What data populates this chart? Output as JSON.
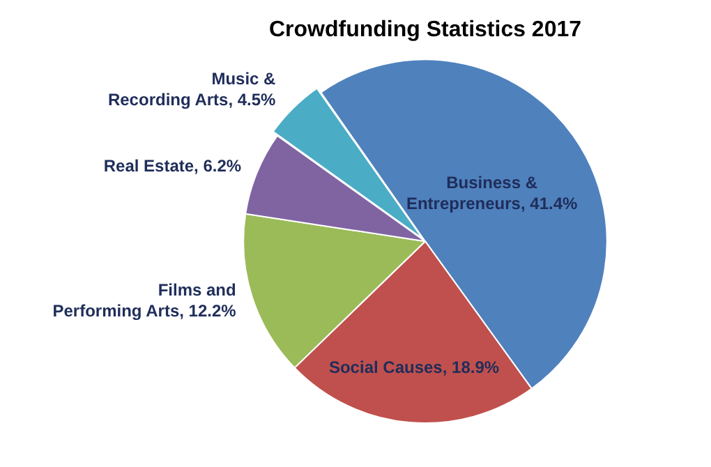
{
  "chart_data": {
    "type": "pie",
    "title": "Crowdfunding Statistics 2017",
    "categories": [
      "Business & Entrepreneurs",
      "Social Causes",
      "Films and Performing Arts",
      "Real Estate",
      "Music & Recording Arts"
    ],
    "values": [
      41.4,
      18.9,
      12.2,
      6.2,
      4.5
    ],
    "value_labels": [
      "41.4%",
      "18.9%",
      "12.2%",
      "6.2%",
      "4.5%"
    ],
    "colors": [
      "#4f81bd",
      "#c0504d",
      "#9bbb59",
      "#8064a2",
      "#4bacc6"
    ],
    "legend": false
  }
}
